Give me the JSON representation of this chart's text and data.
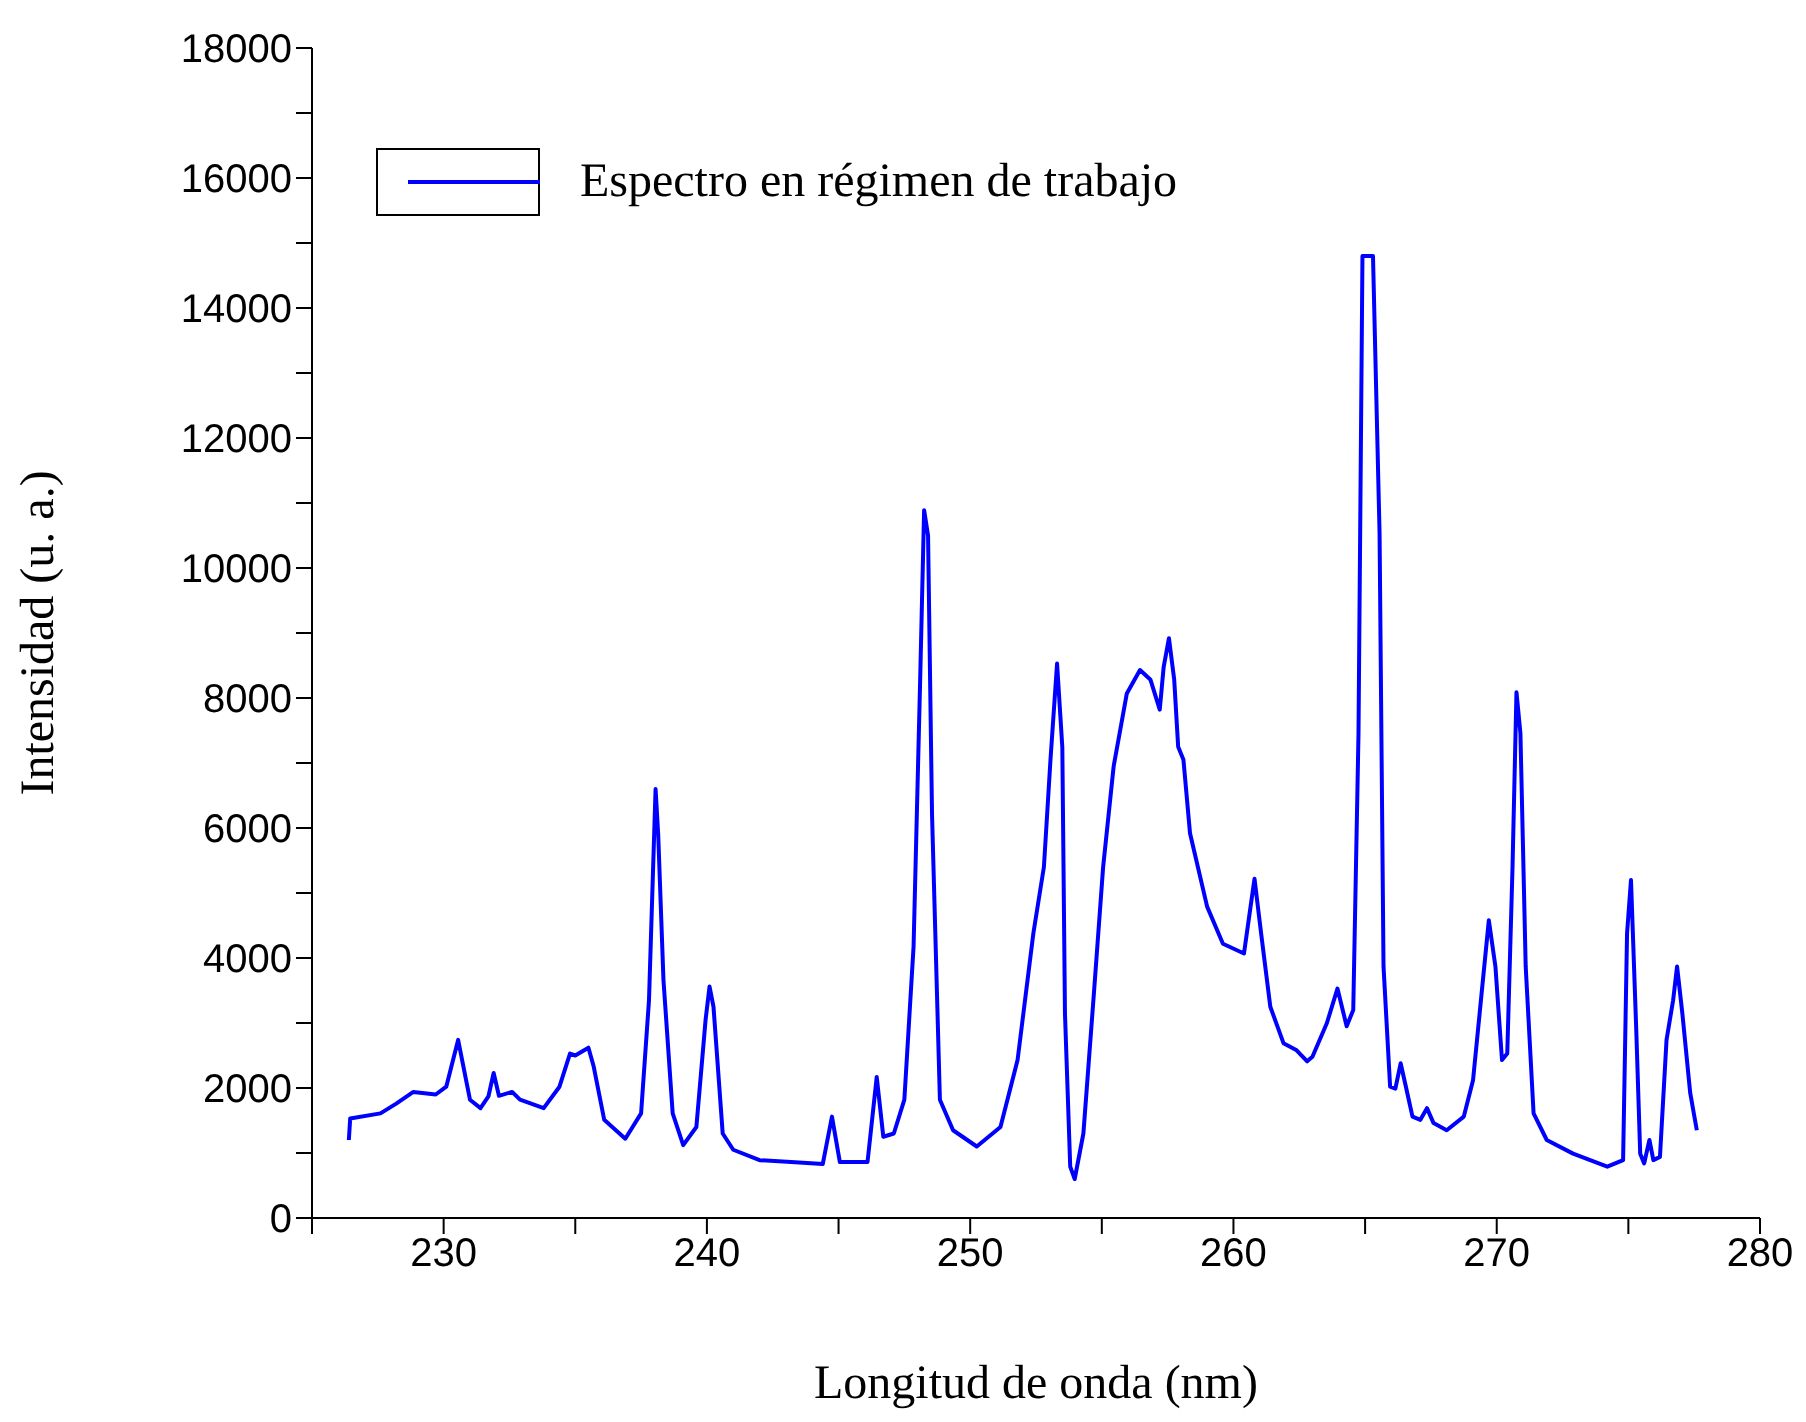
{
  "chart_data": {
    "type": "line",
    "xlabel": "Longitud de onda (nm)",
    "ylabel": "Intensidad (u. a.)",
    "xlim": [
      225,
      280
    ],
    "xticks": [
      {
        "value": 225,
        "label": null
      },
      230,
      {
        "value": 235,
        "label": null
      },
      240,
      {
        "value": 245,
        "label": null
      },
      250,
      {
        "value": 255,
        "label": null
      },
      260,
      {
        "value": 265,
        "label": null
      },
      270,
      {
        "value": 275,
        "label": null
      },
      280
    ],
    "ylim": [
      0,
      18000
    ],
    "yticks": [
      0,
      {
        "value": 1000,
        "label": null
      },
      2000,
      {
        "value": 3000,
        "label": null
      },
      4000,
      {
        "value": 5000,
        "label": null
      },
      6000,
      {
        "value": 7000,
        "label": null
      },
      8000,
      {
        "value": 9000,
        "label": null
      },
      10000,
      {
        "value": 11000,
        "label": null
      },
      12000,
      {
        "value": 13000,
        "label": null
      },
      14000,
      {
        "value": 15000,
        "label": null
      },
      16000,
      {
        "value": 17000,
        "label": null
      },
      18000
    ],
    "grid": false,
    "legend": "top left",
    "marker": "none",
    "line_style": "solid",
    "series": [
      {
        "name": "Espectro en régimen de trabajo",
        "color": "#0000ff",
        "x": [
          226.4,
          226.45,
          227.6,
          228.2,
          228.85,
          229.7,
          230.1,
          230.55,
          231.0,
          231.4,
          231.7,
          231.9,
          232.1,
          232.6,
          232.9,
          233.8,
          234.4,
          234.8,
          235.0,
          235.5,
          235.7,
          236.1,
          236.9,
          237.5,
          237.8,
          238.05,
          238.15,
          238.35,
          238.7,
          239.1,
          239.6,
          239.95,
          240.1,
          240.25,
          240.6,
          241.0,
          242.0,
          243.2,
          244.4,
          244.75,
          245.05,
          246.1,
          246.45,
          246.7,
          247.1,
          247.5,
          247.85,
          248.1,
          248.25,
          248.4,
          248.55,
          248.85,
          249.35,
          250.25,
          251.15,
          251.8,
          252.4,
          252.8,
          253.05,
          253.3,
          253.5,
          253.6,
          253.8,
          253.97,
          254.3,
          254.7,
          255.05,
          255.45,
          255.95,
          256.45,
          256.85,
          257.2,
          257.35,
          257.55,
          257.75,
          257.9,
          258.1,
          258.35,
          259.0,
          259.6,
          260.4,
          260.65,
          260.8,
          261.05,
          261.4,
          261.9,
          262.4,
          262.8,
          263.0,
          263.55,
          263.95,
          264.3,
          264.55,
          264.75,
          264.9,
          265.3,
          265.55,
          265.7,
          265.95,
          266.15,
          266.35,
          266.55,
          266.8,
          267.1,
          267.35,
          267.6,
          268.1,
          268.75,
          269.1,
          269.4,
          269.7,
          269.95,
          270.2,
          270.4,
          270.6,
          270.75,
          270.9,
          271.1,
          271.4,
          271.9,
          272.9,
          274.2,
          274.8,
          274.95,
          275.1,
          275.3,
          275.45,
          275.6,
          275.8,
          275.95,
          276.2,
          276.45,
          276.7,
          276.85,
          277.05,
          277.35,
          277.6
        ],
        "values": [
          1200,
          1530,
          1610,
          1760,
          1940,
          1900,
          2020,
          2740,
          1820,
          1690,
          1870,
          2230,
          1880,
          1940,
          1820,
          1690,
          2020,
          2530,
          2500,
          2620,
          2330,
          1510,
          1220,
          1610,
          3350,
          6600,
          5900,
          3660,
          1610,
          1120,
          1400,
          3050,
          3560,
          3250,
          1300,
          1050,
          890,
          860,
          830,
          1560,
          860,
          860,
          2170,
          1250,
          1300,
          1820,
          4180,
          8280,
          10890,
          10500,
          6220,
          1820,
          1350,
          1100,
          1400,
          2430,
          4380,
          5400,
          7050,
          8530,
          7240,
          3150,
          790,
          600,
          1300,
          3460,
          5400,
          6950,
          8070,
          8430,
          8280,
          7820,
          8480,
          8920,
          8280,
          7250,
          7050,
          5920,
          4790,
          4220,
          4070,
          4790,
          5220,
          4380,
          3250,
          2690,
          2580,
          2410,
          2480,
          3000,
          3530,
          2950,
          3200,
          7460,
          14800,
          14800,
          10530,
          3870,
          2020,
          1990,
          2380,
          2020,
          1560,
          1510,
          1690,
          1460,
          1350,
          1560,
          2120,
          3350,
          4580,
          3870,
          2430,
          2530,
          5400,
          8090,
          7460,
          3870,
          1610,
          1200,
          990,
          790,
          890,
          4380,
          5200,
          2890,
          990,
          840,
          1200,
          890,
          940,
          2740,
          3350,
          3870,
          3150,
          1920,
          1350
        ]
      }
    ]
  }
}
